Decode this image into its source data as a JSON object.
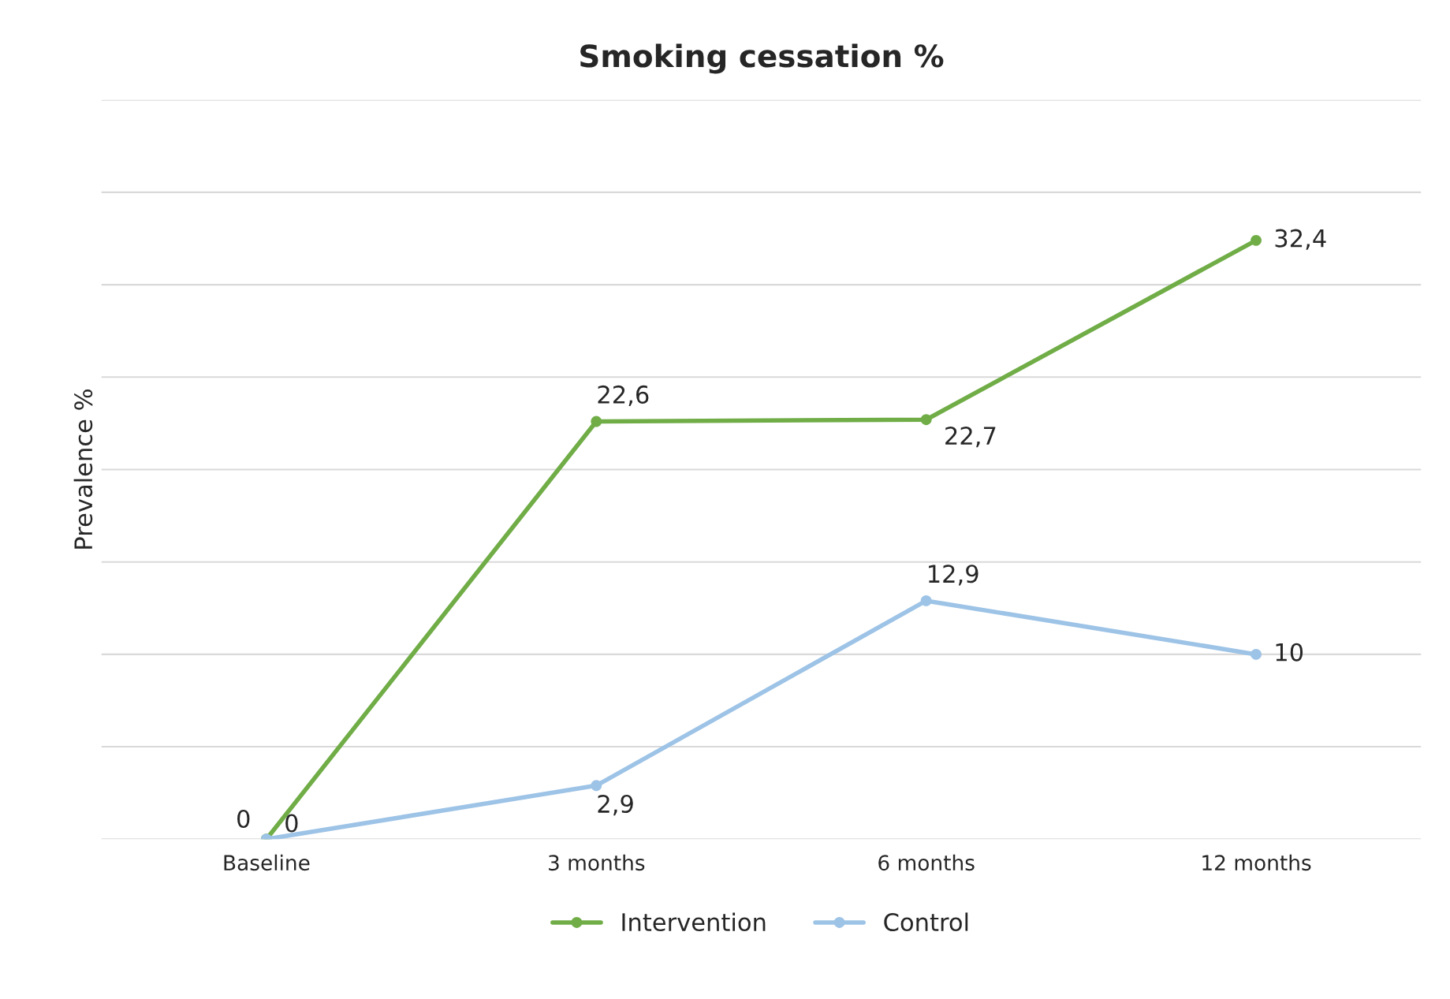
{
  "chart_data": {
    "type": "line",
    "title": "Smoking cessation %",
    "ylabel": "Prevalence %",
    "categories": [
      "Baseline",
      "3 months",
      "6 months",
      "12 months"
    ],
    "series": [
      {
        "name": "Intervention",
        "color": "#70ad47",
        "values": [
          0,
          22.6,
          22.7,
          32.4
        ],
        "value_labels": [
          "0",
          "22,6",
          "22,7",
          "32,4"
        ]
      },
      {
        "name": "Control",
        "color": "#9dc3e6",
        "values": [
          0,
          2.9,
          12.9,
          10
        ],
        "value_labels": [
          "0",
          "2,9",
          "12,9",
          "10"
        ]
      }
    ],
    "ylim": [
      0,
      40
    ],
    "yticks": [
      {
        "value": 0,
        "label": null
      },
      {
        "value": 5,
        "label": null
      },
      {
        "value": 10,
        "label": null
      },
      {
        "value": 15,
        "label": null
      },
      {
        "value": 20,
        "label": null
      },
      {
        "value": 25,
        "label": null
      },
      {
        "value": 30,
        "label": null
      },
      {
        "value": 35,
        "label": null
      },
      {
        "value": 40,
        "label": null
      }
    ],
    "tick_labels": "x",
    "grid": "y",
    "legend": "bottom",
    "marker": "circle",
    "line_style": "solid"
  }
}
